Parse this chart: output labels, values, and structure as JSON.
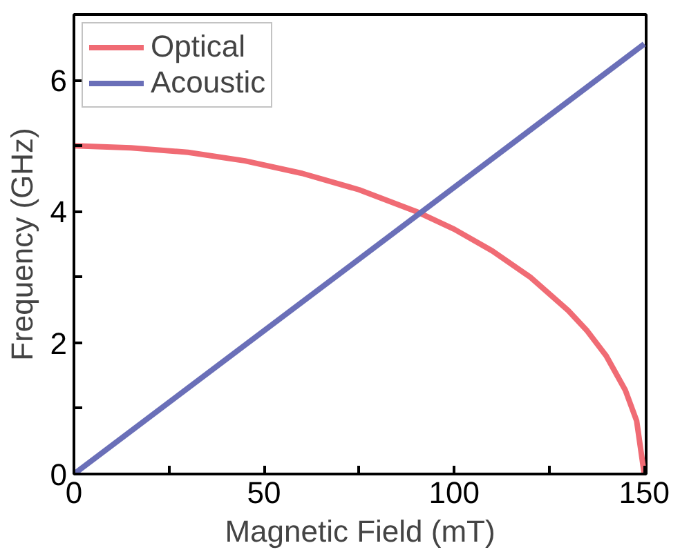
{
  "chart_data": {
    "type": "line",
    "xlabel": "Magnetic Field (mT)",
    "ylabel": "Frequency (GHz)",
    "xlim": [
      0,
      150.5
    ],
    "ylim": [
      0,
      7
    ],
    "xticks": [
      0,
      {
        "value": 25,
        "label": null
      },
      50,
      {
        "value": 75,
        "label": null
      },
      100,
      {
        "value": 125,
        "label": null
      },
      150
    ],
    "yticks": [
      0,
      {
        "value": 1,
        "label": null
      },
      2,
      {
        "value": 3,
        "label": null
      },
      4,
      {
        "value": 5,
        "label": null
      },
      6
    ],
    "grid": false,
    "legend": "top left",
    "line_style": "solid",
    "marker": "none",
    "series": [
      {
        "name": "Optical",
        "color": "#f06b74",
        "x": [
          0,
          15,
          30,
          45,
          60,
          75,
          90,
          100,
          110,
          120,
          130,
          135,
          140,
          145,
          148,
          150
        ],
        "values": [
          5.0,
          4.97,
          4.9,
          4.77,
          4.58,
          4.33,
          4.0,
          3.73,
          3.4,
          3.0,
          2.49,
          2.18,
          1.8,
          1.28,
          0.81,
          0
        ]
      },
      {
        "name": "Acoustic",
        "color": "#6a6fb8",
        "x": [
          0,
          150
        ],
        "values": [
          0,
          6.55
        ]
      }
    ]
  }
}
